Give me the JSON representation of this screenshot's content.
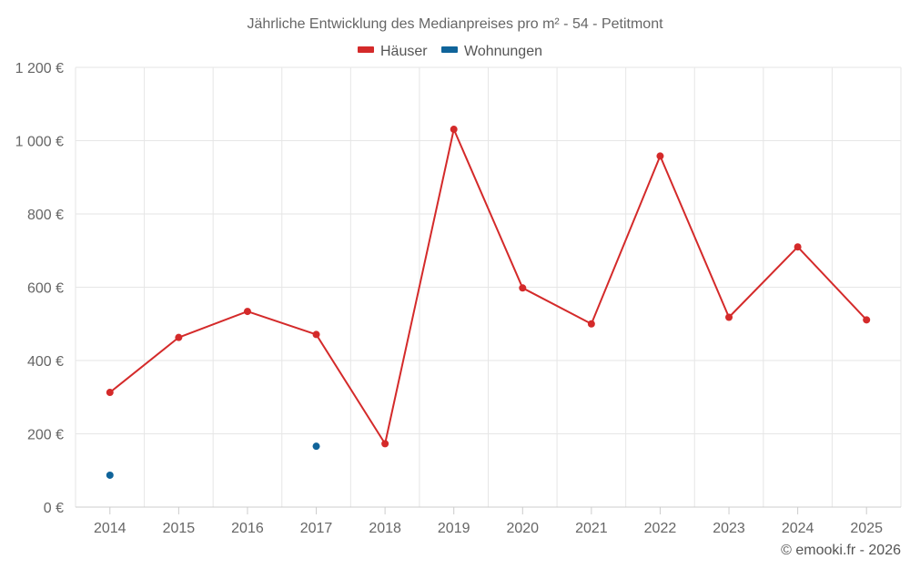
{
  "chart_data": {
    "type": "line",
    "title": "Jährliche Entwicklung des Medianpreises pro m² - 54 - Petitmont",
    "categories": [
      "2014",
      "2015",
      "2016",
      "2017",
      "2018",
      "2019",
      "2020",
      "2021",
      "2022",
      "2023",
      "2024",
      "2025"
    ],
    "series": [
      {
        "name": "Häuser",
        "color": "#d42a2a",
        "values": [
          313,
          463,
          534,
          471,
          173,
          1031,
          598,
          500,
          958,
          518,
          710,
          511
        ]
      },
      {
        "name": "Wohnungen",
        "color": "#10649a",
        "values": [
          87,
          null,
          null,
          166,
          null,
          null,
          null,
          null,
          null,
          null,
          null,
          null
        ]
      }
    ],
    "ylim": [
      0,
      1200
    ],
    "yticks": [
      0,
      200,
      400,
      600,
      800,
      1000,
      1200
    ],
    "ytick_labels": [
      "0 €",
      "200 €",
      "400 €",
      "600 €",
      "800 €",
      "1 000 €",
      "1 200 €"
    ],
    "xlabel": "",
    "ylabel": "",
    "grid": true,
    "legend_position": "top-center"
  },
  "credit": "© emooki.fr - 2026"
}
